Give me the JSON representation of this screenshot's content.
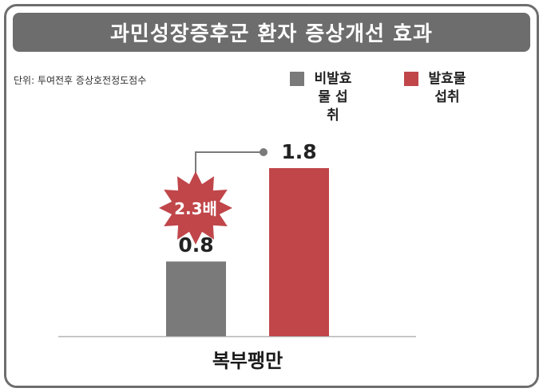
{
  "title": "과민성장증후군 환자 증상개선 효과",
  "unit_note": "단위: 투여전후 증상호전정도점수",
  "colors": {
    "title_bar": "#6d6d6d",
    "non_fermented": "#7a7a7a",
    "fermented": "#c0464a",
    "badge": "#c0464a",
    "connector": "#7a7a7a"
  },
  "legend": [
    {
      "label": "비발효물 섭취",
      "color": "#7a7a7a"
    },
    {
      "label": "발효물 섭취",
      "color": "#c0464a"
    }
  ],
  "comparison_badge": "2.3배",
  "chart_data": {
    "type": "bar",
    "title": "과민성장증후군 환자 증상개선 효과",
    "categories": [
      "복부팽만"
    ],
    "series": [
      {
        "name": "비발효물 섭취",
        "values": [
          0.8
        ],
        "color": "#7a7a7a"
      },
      {
        "name": "발효물 섭취",
        "values": [
          1.8
        ],
        "color": "#c0464a"
      }
    ],
    "data_labels": [
      "0.8",
      "1.8"
    ],
    "ylim": [
      0,
      1.8
    ],
    "grid": false,
    "legend_position": "top-right"
  }
}
